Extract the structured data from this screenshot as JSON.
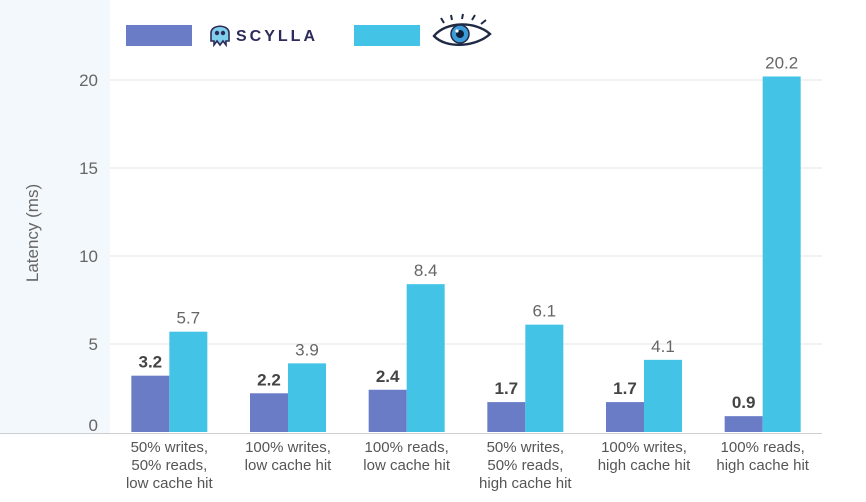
{
  "chart_data": {
    "type": "bar",
    "categories": [
      [
        "50% writes,",
        "50% reads,",
        "low cache hit"
      ],
      [
        "100% writes,",
        "low cache hit"
      ],
      [
        "100% reads,",
        "low cache hit"
      ],
      [
        "50% writes,",
        "50% reads,",
        "high cache hit"
      ],
      [
        "100% writes,",
        "high cache hit"
      ],
      [
        "100% reads,",
        "high cache hit"
      ]
    ],
    "series": [
      {
        "name": "SCYLLA",
        "color": "#6b7cc7",
        "values": [
          3.2,
          2.2,
          2.4,
          1.7,
          1.7,
          0.9
        ],
        "bold_labels": true
      },
      {
        "name": "",
        "legend_icon": "cassandra-eye-icon",
        "color": "#43c3e6",
        "values": [
          5.7,
          3.9,
          8.4,
          6.1,
          4.1,
          20.2
        ],
        "bold_labels": false
      }
    ],
    "ylabel": "Latency (ms)",
    "yticks": [
      "0",
      "5",
      "10",
      "15",
      "20"
    ],
    "ylim": [
      0,
      22
    ],
    "grid": true,
    "legend_position": "top-left"
  }
}
